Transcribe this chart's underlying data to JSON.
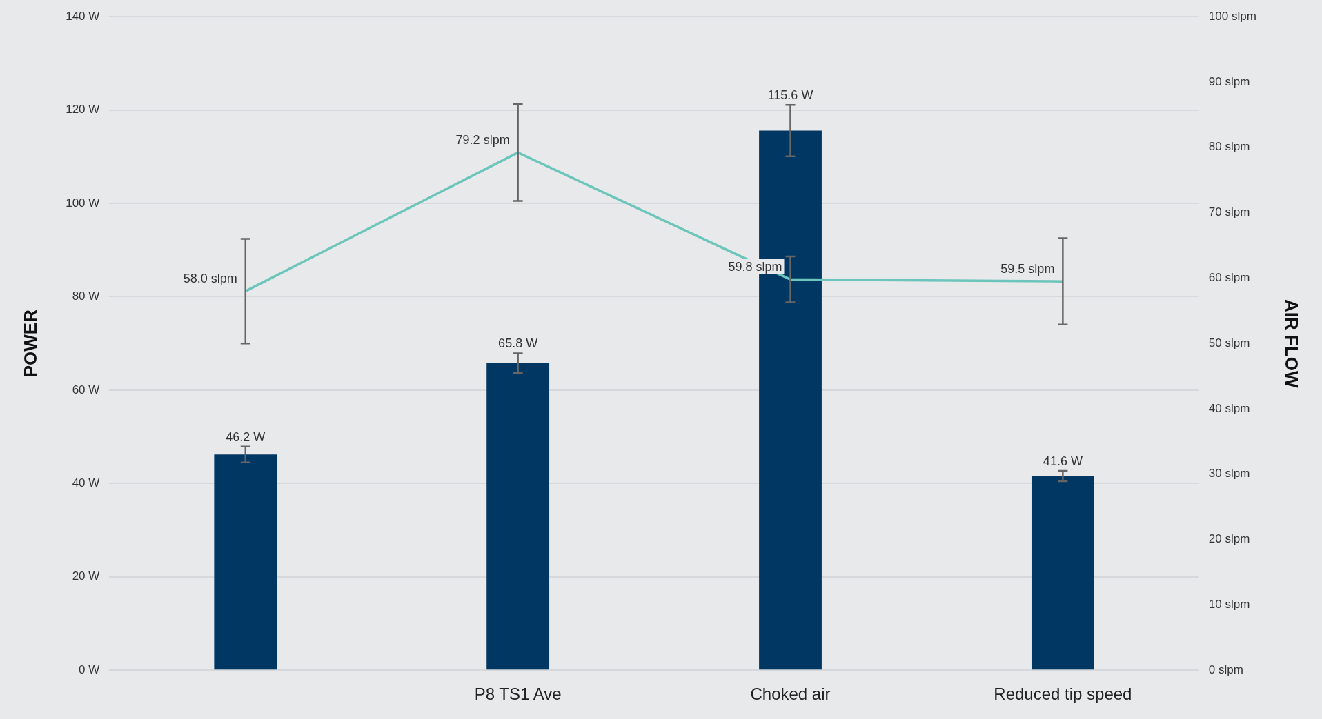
{
  "chart_data": {
    "type": "bar",
    "categories": [
      null,
      "P8 TS1 Ave",
      "Choked air",
      "Reduced tip speed"
    ],
    "series": [
      {
        "color": "#003763",
        "values": [
          46.2,
          65.8,
          115.6,
          41.6
        ],
        "errors": [
          1.7,
          2.1,
          5.5,
          1.1
        ],
        "value_labels": [
          "46.2 W",
          "65.8 W",
          "115.6 W",
          "41.6 W"
        ]
      },
      {
        "type": "line",
        "axis": "y2",
        "color": "#6cc5bb",
        "values": [
          58.0,
          79.2,
          59.8,
          59.5
        ],
        "errors": [
          8,
          7.4,
          3.5,
          6.6
        ],
        "value_labels": [
          "58.0 slpm",
          "79.2 slpm",
          "59.8 slpm",
          "59.5 slpm"
        ]
      }
    ],
    "ylabel": "POWER",
    "y2label": "AIR FLOW",
    "ylim": [
      0,
      140
    ],
    "yticks": [
      {
        "value": 0,
        "label": "0 W"
      },
      {
        "value": 20,
        "label": "20 W"
      },
      {
        "value": 40,
        "label": "40 W"
      },
      {
        "value": 60,
        "label": "60 W"
      },
      {
        "value": 80,
        "label": "80 W"
      },
      {
        "value": 100,
        "label": "100 W"
      },
      {
        "value": 120,
        "label": "120 W"
      },
      {
        "value": 140,
        "label": "140 W"
      }
    ],
    "y2lim": [
      0,
      100
    ],
    "y2ticks": [
      {
        "value": 0,
        "label": "0 slpm"
      },
      {
        "value": 10,
        "label": "10 slpm"
      },
      {
        "value": 20,
        "label": "20 slpm"
      },
      {
        "value": 30,
        "label": "30 slpm"
      },
      {
        "value": 40,
        "label": "40 slpm"
      },
      {
        "value": 50,
        "label": "50 slpm"
      },
      {
        "value": 60,
        "label": "60 slpm"
      },
      {
        "value": 70,
        "label": "70 slpm"
      },
      {
        "value": 80,
        "label": "80 slpm"
      },
      {
        "value": 90,
        "label": "90 slpm"
      },
      {
        "value": 100,
        "label": "100 slpm"
      }
    ],
    "grid": "y",
    "legend": false,
    "marker": "none"
  }
}
